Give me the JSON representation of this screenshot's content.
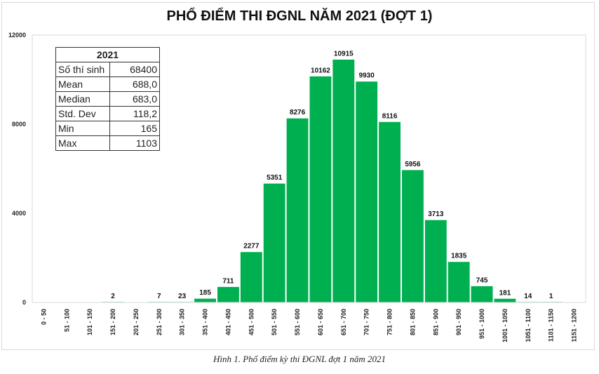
{
  "chart_data": {
    "type": "bar",
    "title": "PHỔ ĐIỂM THI ĐGNL NĂM 2021 (ĐỢT 1)",
    "categories": [
      "0 - 50",
      "51 - 100",
      "101 - 150",
      "151 - 200",
      "201 - 250",
      "251 - 300",
      "301 - 350",
      "351 - 400",
      "401 - 450",
      "451 - 500",
      "501 - 550",
      "551 - 600",
      "601 - 650",
      "651 - 700",
      "701 - 750",
      "751 - 800",
      "801 - 850",
      "851 - 900",
      "901 - 950",
      "951 - 1000",
      "1001 - 1050",
      "1051 - 1100",
      "1101 - 1150",
      "1151 - 1200"
    ],
    "values": [
      0,
      0,
      0,
      2,
      0,
      7,
      23,
      185,
      711,
      2277,
      5351,
      8276,
      10162,
      10915,
      9930,
      8116,
      5956,
      3713,
      1835,
      745,
      181,
      14,
      1,
      0
    ],
    "ylim": [
      0,
      12000
    ],
    "yticks": [
      0,
      4000,
      8000,
      12000
    ],
    "grid": false,
    "legend": "none",
    "bar_color": "#00b050",
    "xlabel": "",
    "ylabel": ""
  },
  "stats_table": {
    "header": "2021",
    "rows": [
      {
        "label": "Số thí sinh",
        "value": "68400"
      },
      {
        "label": "Mean",
        "value": "688,0"
      },
      {
        "label": "Median",
        "value": "683,0"
      },
      {
        "label": "Std. Dev",
        "value": "118,2"
      },
      {
        "label": "Min",
        "value": "165"
      },
      {
        "label": "Max",
        "value": "1103"
      }
    ]
  },
  "caption": "Hình 1. Phổ điểm kỳ thi ĐGNL đợt 1 năm 2021"
}
